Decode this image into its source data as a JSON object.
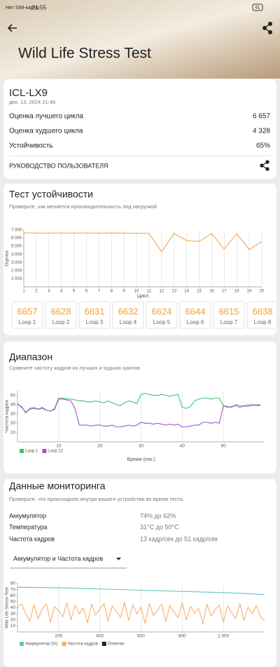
{
  "status_bar": {
    "carrier": "Нет SIM-карты",
    "time": "21:55",
    "battery": "61"
  },
  "header": {
    "title": "Wild Life Stress Test"
  },
  "summary": {
    "device": "ICL-LX9",
    "date": "дек. 13, 2024 21:48",
    "rows": [
      [
        "Оценка лучшего цикла",
        "6 657"
      ],
      [
        "Оценка худшего цикла",
        "4 328"
      ],
      [
        "Устойчивость",
        "65%"
      ]
    ],
    "manual": "РУКОВОДСТВО ПОЛЬЗОВАТЕЛЯ"
  },
  "stability": {
    "title": "Тест устойчивости",
    "subtitle": "Проверьте, как меняется производительность под нагрузкой",
    "tile_labels": [
      "Loop 1",
      "Loop 2",
      "Loop 3",
      "Loop 4",
      "Loop 5",
      "Loop 6",
      "Loop 7",
      "Loop 8"
    ]
  },
  "range": {
    "title": "Диапазон",
    "subtitle": "Сравните частоту кадров из лучших и худших циклов"
  },
  "monitoring": {
    "title": "Данные мониторинга",
    "subtitle": "Проверьте, что происходило внутри вашего устройства во время теста.",
    "rows": [
      [
        "Аккумулятор",
        "74% до 62%"
      ],
      [
        "Температура",
        "31°C до 50°C"
      ],
      [
        "Частота кадров",
        "13 кадр/сек до 51 кадр/сек"
      ]
    ],
    "dropdown": "Аккумулятор и Частота кадров"
  },
  "chart_data": [
    {
      "type": "line",
      "ylabel": "Оценка",
      "xlabel": "Цикл",
      "color": "#f5a45a",
      "grid": "x",
      "x": [
        1,
        2,
        3,
        4,
        5,
        6,
        7,
        8,
        9,
        10,
        11,
        12,
        13,
        14,
        15,
        16,
        17,
        18,
        19,
        20
      ],
      "values": [
        6657,
        6628,
        6631,
        6632,
        6624,
        6644,
        6615,
        6638,
        6620,
        6610,
        6600,
        4328,
        6580,
        5700,
        5600,
        6570,
        4650,
        6560,
        4600,
        5600
      ],
      "xlim": [
        1,
        20
      ],
      "ylim": [
        0,
        7000
      ],
      "xticks": [
        1,
        2,
        3,
        4,
        5,
        6,
        7,
        8,
        9,
        10,
        11,
        12,
        13,
        14,
        15,
        16,
        17,
        18,
        19,
        20
      ],
      "yticks": [
        {
          "value": 1000,
          "label": "1 000"
        },
        {
          "value": 2000,
          "label": "2 000"
        },
        {
          "value": 3000,
          "label": "3 000"
        },
        {
          "value": 4000,
          "label": "4 000"
        },
        {
          "value": 5000,
          "label": "5 000"
        },
        {
          "value": 6000,
          "label": "6 000"
        },
        {
          "value": 7000,
          "label": "7 000"
        }
      ]
    },
    {
      "type": "line",
      "ylabel": "Частота кадров",
      "xlabel": "Время (сек.)",
      "grid": "x",
      "x": [
        0,
        1,
        2,
        3,
        4,
        5,
        6,
        7,
        8,
        9,
        10,
        11,
        12,
        13,
        14,
        15,
        16,
        17,
        18,
        19,
        20,
        21,
        22,
        23,
        24,
        25,
        26,
        27,
        28,
        29,
        30,
        31,
        32,
        33,
        34,
        35,
        36,
        37,
        38,
        39,
        40,
        41,
        42,
        43,
        44,
        45,
        46,
        47,
        48,
        49,
        50,
        51,
        52,
        53,
        54,
        55,
        56,
        57,
        58,
        59
      ],
      "series": [
        {
          "name": "Loop 1",
          "color": "#3ec46d",
          "values": [
            40,
            38,
            31,
            36,
            37,
            35,
            36,
            34,
            33,
            36,
            47,
            47,
            46,
            46,
            45,
            44,
            44,
            43,
            43,
            44,
            43,
            42,
            44,
            42,
            40,
            39,
            42,
            44,
            43,
            41,
            51,
            52,
            51,
            50,
            50,
            51,
            50,
            49,
            50,
            51,
            37,
            36,
            38,
            44,
            46,
            47,
            47,
            46,
            47,
            47,
            39,
            38,
            37,
            40,
            39,
            38,
            40,
            39,
            40,
            40
          ]
        },
        {
          "name": "Loop 12",
          "color": "#9b59d0",
          "values": [
            41,
            37,
            32,
            35,
            36,
            35,
            37,
            34,
            33,
            35,
            46,
            46,
            45,
            44,
            35,
            18,
            18,
            18,
            17,
            18,
            18,
            17,
            17,
            18,
            16,
            16,
            17,
            18,
            17,
            18,
            21,
            20,
            20,
            19,
            20,
            19,
            18,
            19,
            18,
            19,
            16,
            16,
            17,
            18,
            18,
            21,
            21,
            20,
            21,
            20,
            39,
            37,
            38,
            39,
            37,
            39,
            38,
            40,
            39,
            39
          ]
        }
      ],
      "xlim": [
        0,
        60
      ],
      "ylim": [
        0,
        55
      ],
      "xticks": [
        10,
        20,
        30,
        40,
        50
      ],
      "yticks": [
        10,
        20,
        30,
        40,
        50
      ]
    },
    {
      "type": "line",
      "ylabel": "Wild Life Stress Test",
      "grid": "x",
      "markers_label": "Отметки",
      "series": [
        {
          "name": "Аккумулятор (%)",
          "color": "#5cc6c0",
          "x": [
            0,
            200,
            400,
            600,
            800,
            1000,
            1200
          ],
          "values": [
            74,
            73,
            71,
            69,
            67,
            65,
            62
          ]
        },
        {
          "name": "Частота кадров",
          "color": "#f6b06a",
          "x": [
            0,
            20,
            40,
            60,
            80,
            100,
            120,
            140,
            160,
            180,
            200,
            220,
            240,
            260,
            280,
            300,
            320,
            340,
            360,
            380,
            400,
            420,
            440,
            460,
            480,
            500,
            520,
            540,
            560,
            580,
            600,
            620,
            640,
            660,
            680,
            700,
            720,
            740,
            760,
            780,
            800,
            820,
            840,
            860,
            880,
            900,
            920,
            940,
            960,
            980,
            1000,
            1020,
            1040,
            1060,
            1080,
            1100,
            1120,
            1140,
            1160,
            1180,
            1200
          ],
          "values": [
            40,
            46,
            30,
            18,
            45,
            22,
            38,
            47,
            16,
            42,
            35,
            25,
            48,
            20,
            44,
            30,
            40,
            15,
            46,
            28,
            38,
            47,
            18,
            43,
            34,
            24,
            49,
            19,
            45,
            30,
            41,
            14,
            47,
            27,
            36,
            46,
            17,
            44,
            33,
            23,
            48,
            20,
            42,
            31,
            39,
            13,
            46,
            26,
            37,
            45,
            16,
            43,
            32,
            22,
            47,
            19,
            41,
            30,
            44,
            25,
            18
          ]
        }
      ],
      "xlim": [
        0,
        1200
      ],
      "ylim": [
        0,
        80
      ],
      "xticks": [
        200,
        400,
        600,
        800,
        {
          "value": 1000,
          "label": "1 000"
        }
      ],
      "yticks": [
        10,
        20,
        30,
        40,
        50,
        60,
        70,
        80
      ]
    }
  ]
}
